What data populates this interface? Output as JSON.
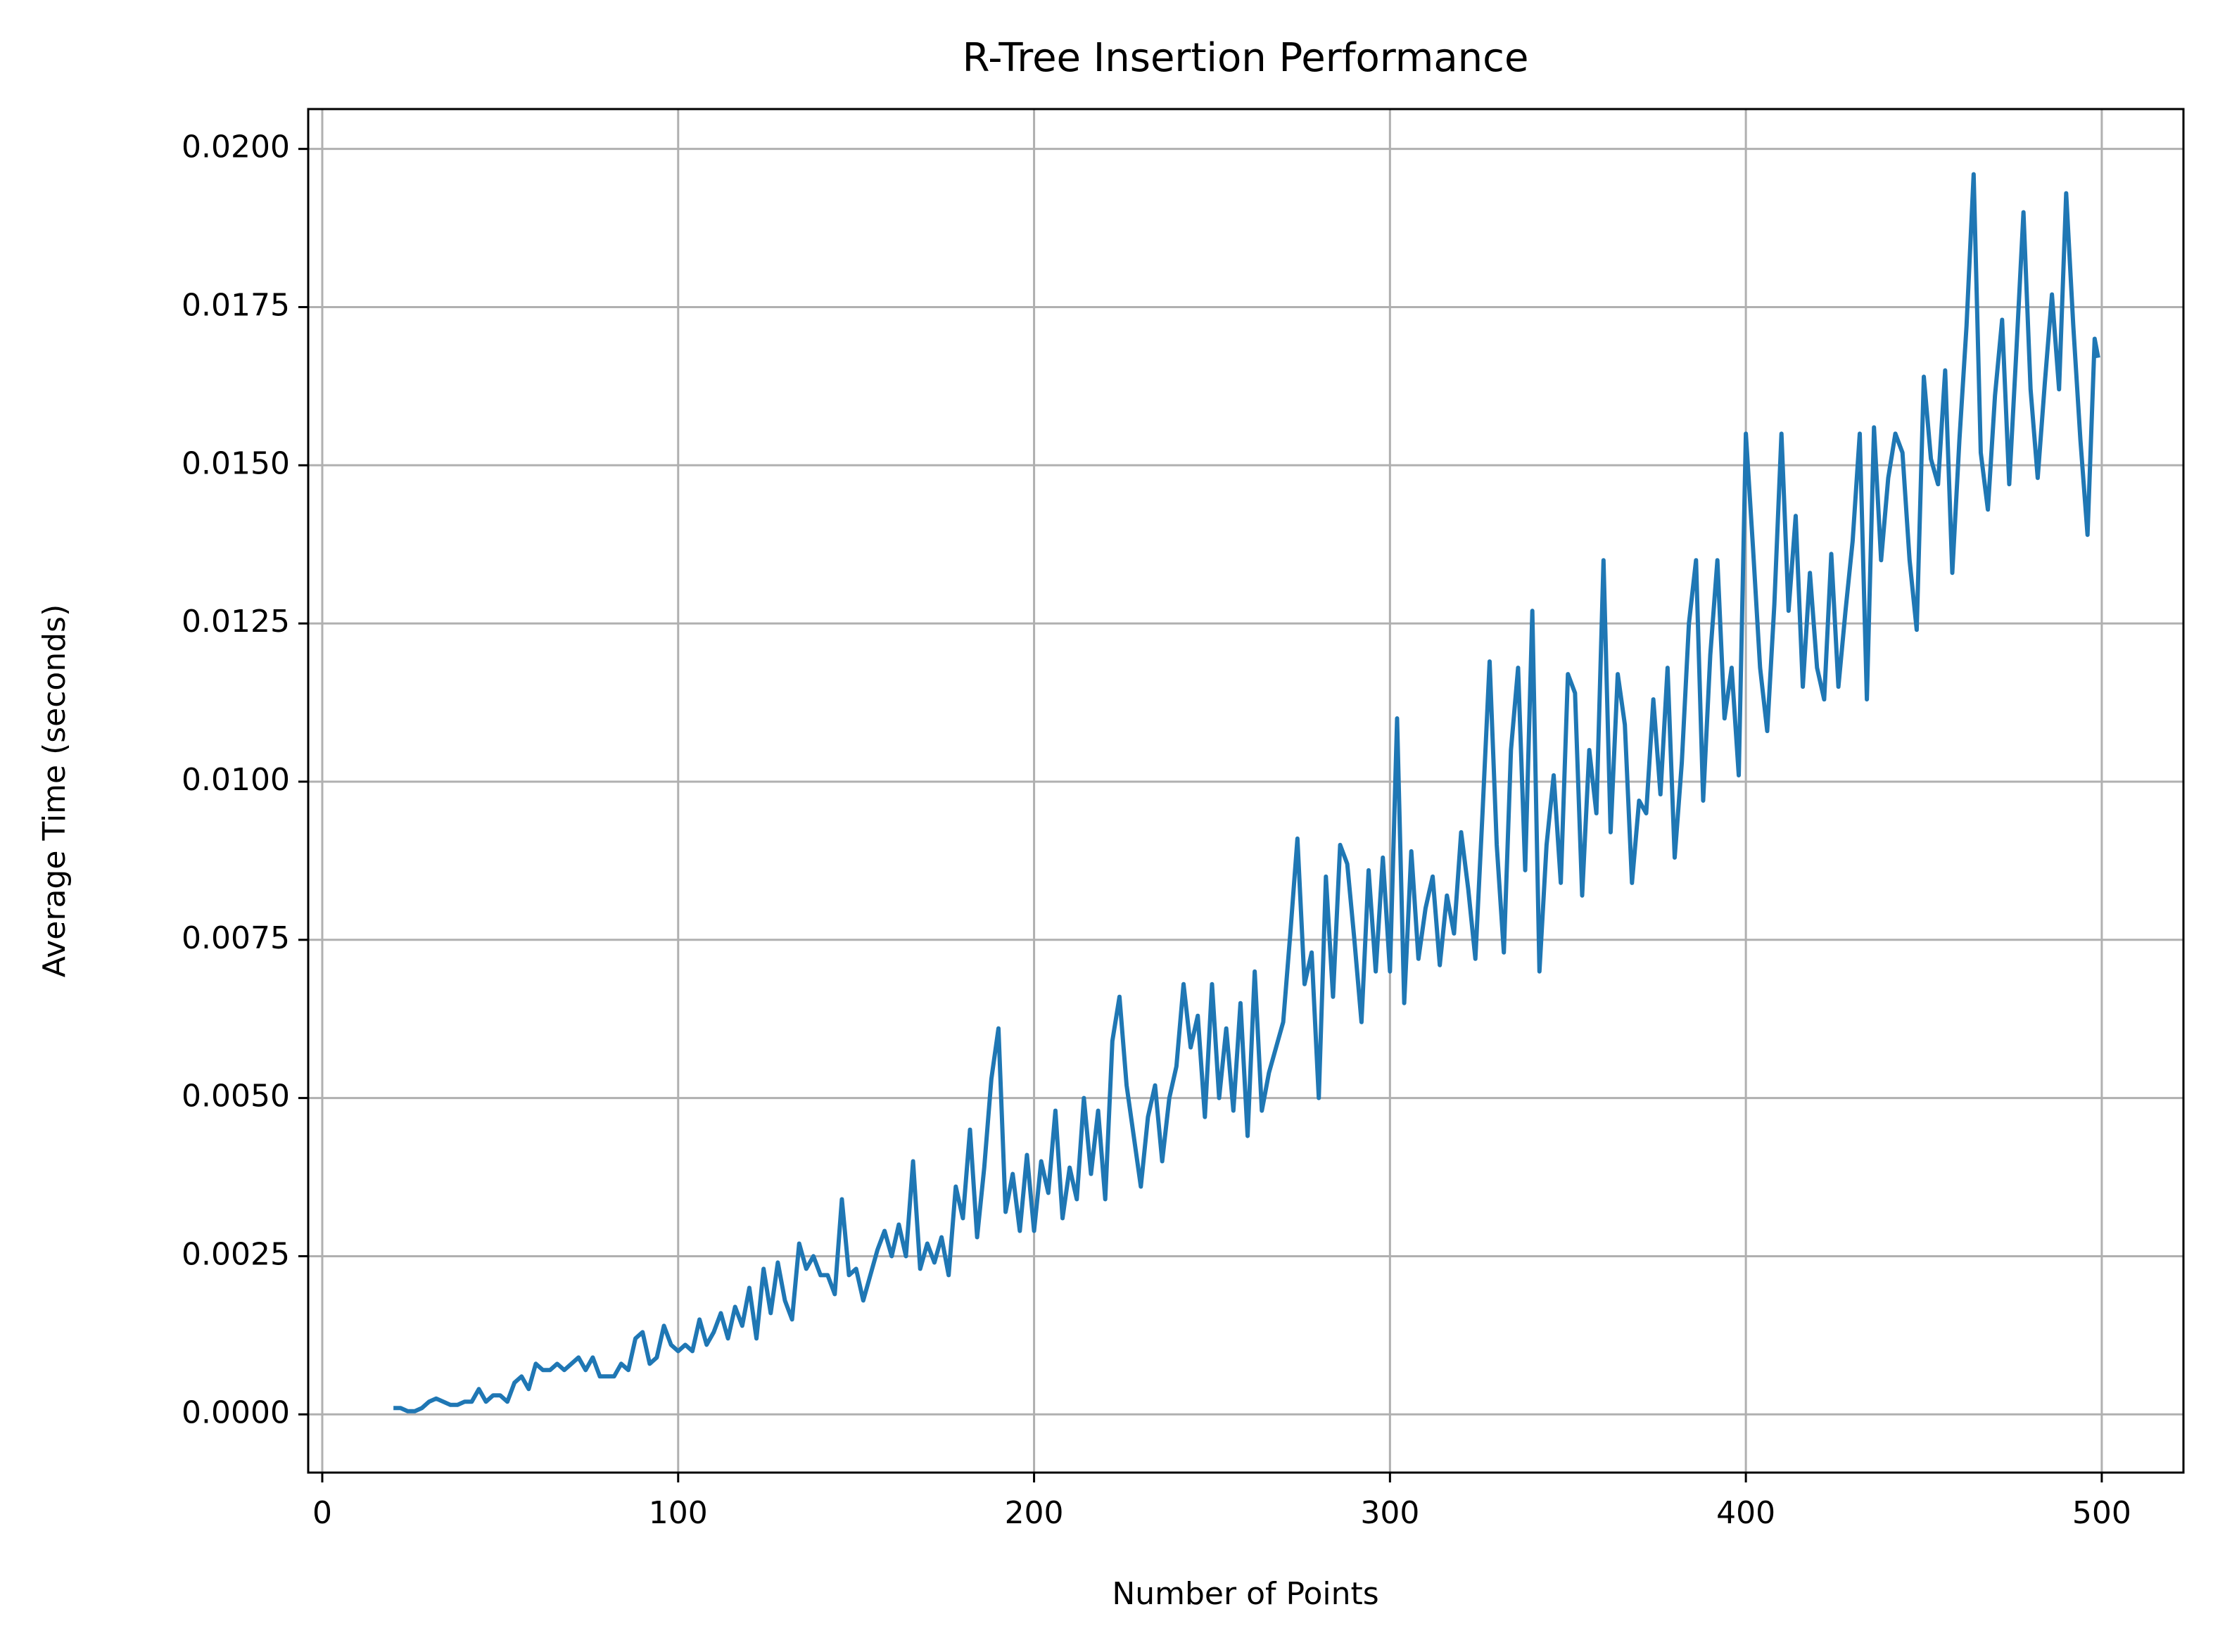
{
  "chart_data": {
    "type": "line",
    "title": "R-Tree Insertion Performance",
    "x_label": "Number of Points",
    "y_label": "Average Time (seconds)",
    "xlim": [
      -3.95,
      522.95
    ],
    "ylim": [
      -0.00092,
      0.02063
    ],
    "xticks": [
      0,
      100,
      200,
      300,
      400,
      500
    ],
    "yticks": [
      {
        "value": 0,
        "label": "0.0000"
      },
      {
        "value": 0.0025,
        "label": "0.0025"
      },
      {
        "value": 0.005,
        "label": "0.0050"
      },
      {
        "value": 0.0075,
        "label": "0.0075"
      },
      {
        "value": 0.01,
        "label": "0.0100"
      },
      {
        "value": 0.0125,
        "label": "0.0125"
      },
      {
        "value": 0.015,
        "label": "0.0150"
      },
      {
        "value": 0.0175,
        "label": "0.0175"
      },
      {
        "value": 0.02,
        "label": "0.0200"
      }
    ],
    "grid": true,
    "x": [
      20,
      22,
      24,
      26,
      28,
      30,
      32,
      34,
      36,
      38,
      40,
      42,
      44,
      46,
      48,
      50,
      52,
      54,
      56,
      58,
      60,
      62,
      64,
      66,
      68,
      70,
      72,
      74,
      76,
      78,
      80,
      82,
      84,
      86,
      88,
      90,
      92,
      94,
      96,
      98,
      100,
      102,
      104,
      106,
      108,
      110,
      112,
      114,
      116,
      118,
      120,
      122,
      124,
      126,
      128,
      130,
      132,
      134,
      136,
      138,
      140,
      142,
      144,
      146,
      148,
      150,
      152,
      154,
      156,
      158,
      160,
      162,
      164,
      166,
      168,
      170,
      172,
      174,
      176,
      178,
      180,
      182,
      184,
      186,
      188,
      190,
      192,
      194,
      196,
      198,
      200,
      202,
      204,
      206,
      208,
      210,
      212,
      214,
      216,
      218,
      220,
      222,
      224,
      226,
      228,
      230,
      232,
      234,
      236,
      238,
      240,
      242,
      244,
      246,
      248,
      250,
      252,
      254,
      256,
      258,
      260,
      262,
      264,
      266,
      268,
      270,
      272,
      274,
      276,
      278,
      280,
      282,
      284,
      286,
      288,
      290,
      292,
      294,
      296,
      298,
      300,
      302,
      304,
      306,
      308,
      310,
      312,
      314,
      316,
      318,
      320,
      322,
      324,
      326,
      328,
      330,
      332,
      334,
      336,
      338,
      340,
      342,
      344,
      346,
      348,
      350,
      352,
      354,
      356,
      358,
      360,
      362,
      364,
      366,
      368,
      370,
      372,
      374,
      376,
      378,
      380,
      382,
      384,
      386,
      388,
      390,
      392,
      394,
      396,
      398,
      400,
      402,
      404,
      406,
      408,
      410,
      412,
      414,
      416,
      418,
      420,
      422,
      424,
      426,
      428,
      430,
      432,
      434,
      436,
      438,
      440,
      442,
      444,
      446,
      448,
      450,
      452,
      454,
      456,
      458,
      460,
      462,
      464,
      466,
      468,
      470,
      472,
      474,
      476,
      478,
      480,
      482,
      484,
      486,
      488,
      490,
      492,
      494,
      496,
      498,
      499
    ],
    "series": [
      {
        "name": "Average Time",
        "color": "#1f77b4",
        "values": [
          0.0001,
          0.0001,
          5e-05,
          5e-05,
          0.0001,
          0.0002,
          0.00025,
          0.0002,
          0.00015,
          0.00015,
          0.0002,
          0.0002,
          0.0004,
          0.0002,
          0.0003,
          0.0003,
          0.0002,
          0.0005,
          0.0006,
          0.0004,
          0.0008,
          0.0007,
          0.0007,
          0.0008,
          0.0007,
          0.0008,
          0.0009,
          0.0007,
          0.0009,
          0.0006,
          0.0006,
          0.0006,
          0.0008,
          0.0007,
          0.0012,
          0.0013,
          0.0008,
          0.0009,
          0.0014,
          0.0011,
          0.001,
          0.0011,
          0.001,
          0.0015,
          0.0011,
          0.0013,
          0.0016,
          0.0012,
          0.0017,
          0.0014,
          0.002,
          0.0012,
          0.0023,
          0.0016,
          0.0024,
          0.0018,
          0.0015,
          0.0027,
          0.0023,
          0.0025,
          0.0022,
          0.0022,
          0.0019,
          0.0034,
          0.0022,
          0.0023,
          0.0018,
          0.0022,
          0.0026,
          0.0029,
          0.0025,
          0.003,
          0.0025,
          0.004,
          0.0023,
          0.0027,
          0.0024,
          0.0028,
          0.0022,
          0.0036,
          0.0031,
          0.0045,
          0.0028,
          0.0039,
          0.0053,
          0.0061,
          0.0032,
          0.0038,
          0.0029,
          0.0041,
          0.0029,
          0.004,
          0.0035,
          0.0048,
          0.0031,
          0.0039,
          0.0034,
          0.005,
          0.0038,
          0.0048,
          0.0034,
          0.0059,
          0.0066,
          0.0052,
          0.0044,
          0.0036,
          0.0047,
          0.0052,
          0.004,
          0.005,
          0.0055,
          0.0068,
          0.0058,
          0.0063,
          0.0047,
          0.0068,
          0.005,
          0.0061,
          0.0048,
          0.0065,
          0.0044,
          0.007,
          0.0048,
          0.0054,
          0.0058,
          0.0062,
          0.0076,
          0.0091,
          0.0068,
          0.0073,
          0.005,
          0.0085,
          0.0066,
          0.009,
          0.0087,
          0.0075,
          0.0062,
          0.0086,
          0.007,
          0.0088,
          0.007,
          0.011,
          0.0065,
          0.0089,
          0.0072,
          0.008,
          0.0085,
          0.0071,
          0.0082,
          0.0076,
          0.0092,
          0.0083,
          0.0072,
          0.0095,
          0.0119,
          0.009,
          0.0073,
          0.0105,
          0.0118,
          0.0086,
          0.0127,
          0.007,
          0.009,
          0.0101,
          0.0084,
          0.0117,
          0.0114,
          0.0082,
          0.0105,
          0.0095,
          0.0135,
          0.0092,
          0.0117,
          0.0109,
          0.0084,
          0.0097,
          0.0095,
          0.0113,
          0.0098,
          0.0118,
          0.0088,
          0.0103,
          0.0125,
          0.0135,
          0.0097,
          0.012,
          0.0135,
          0.011,
          0.0118,
          0.0101,
          0.0155,
          0.0137,
          0.0118,
          0.0108,
          0.0128,
          0.0155,
          0.0127,
          0.0142,
          0.0115,
          0.0133,
          0.0118,
          0.0113,
          0.0136,
          0.0115,
          0.0127,
          0.0138,
          0.0155,
          0.0113,
          0.0156,
          0.0135,
          0.0148,
          0.0155,
          0.0152,
          0.0135,
          0.0124,
          0.0164,
          0.0151,
          0.0147,
          0.0165,
          0.0133,
          0.0154,
          0.0172,
          0.0196,
          0.0152,
          0.0143,
          0.0161,
          0.0173,
          0.0147,
          0.0168,
          0.019,
          0.0162,
          0.0148,
          0.0163,
          0.0177,
          0.0162,
          0.0193,
          0.0172,
          0.0154,
          0.0139,
          0.017,
          0.0167
        ]
      }
    ]
  }
}
